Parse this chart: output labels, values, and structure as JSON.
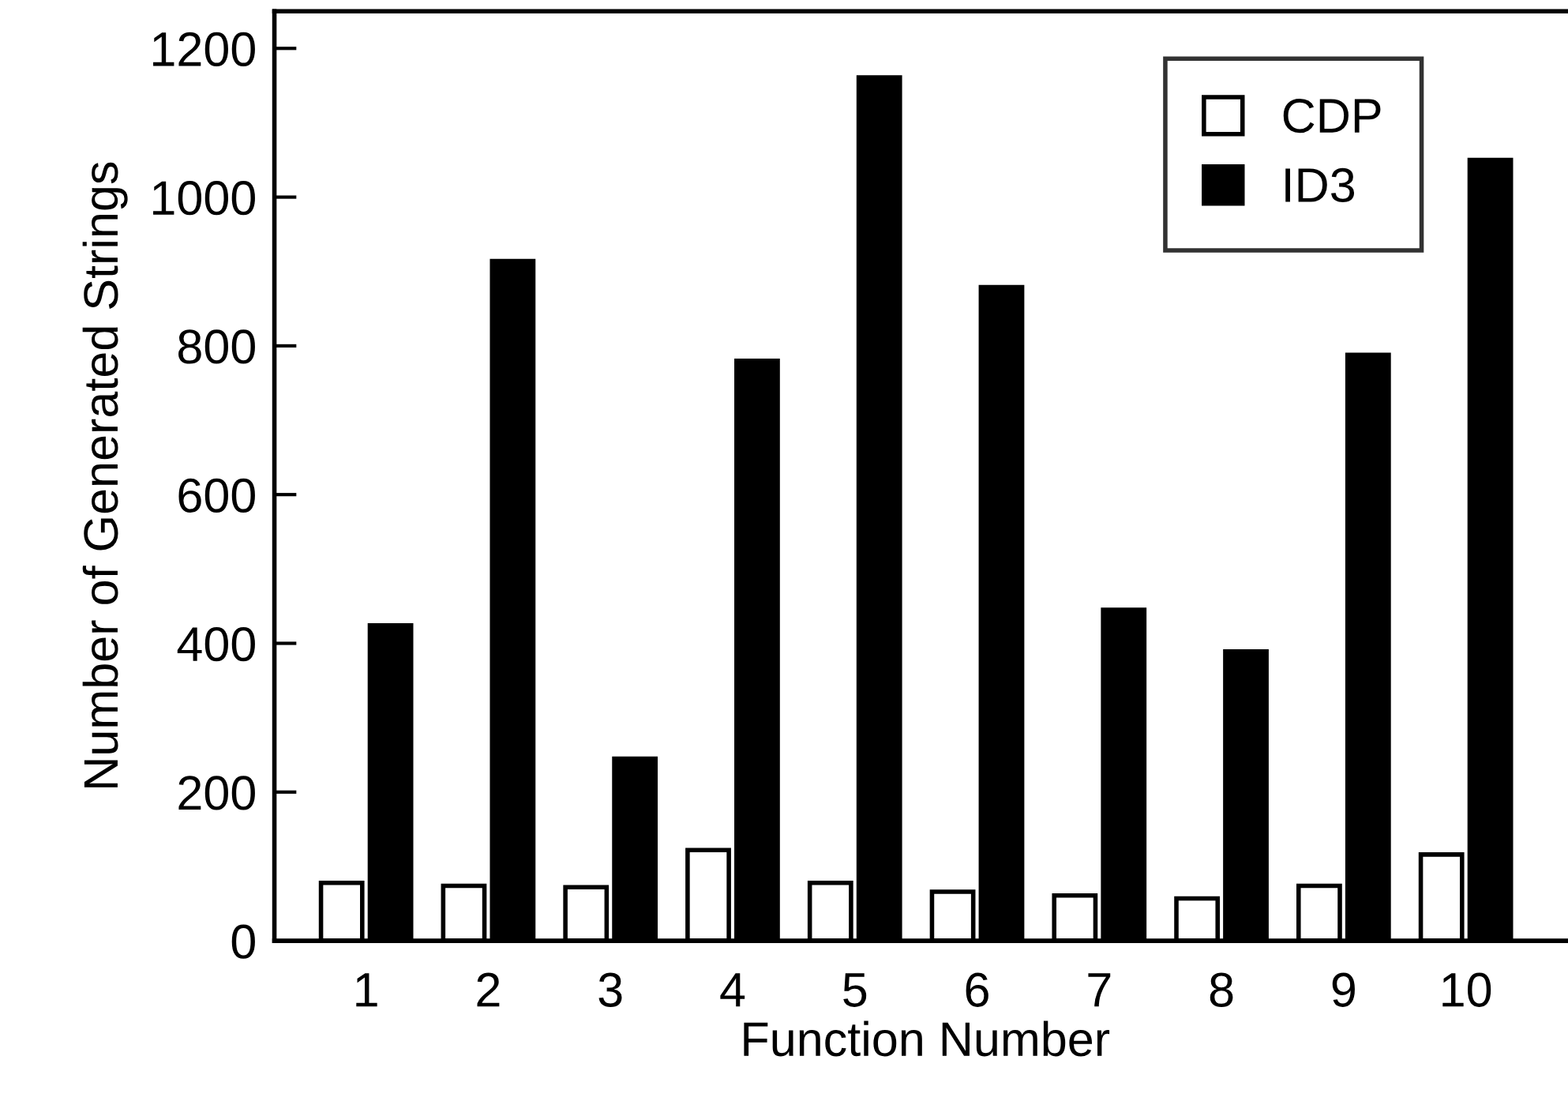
{
  "chart_data": {
    "type": "bar",
    "xlabel": "Function Number",
    "ylabel": "Number of Generated Strings",
    "categories": [
      "1",
      "2",
      "3",
      "4",
      "5",
      "6",
      "7",
      "8",
      "9",
      "10"
    ],
    "series": [
      {
        "name": "CDP",
        "color": "#ffffff",
        "values": [
          78,
          74,
          72,
          122,
          78,
          66,
          61,
          57,
          74,
          116
        ]
      },
      {
        "name": "ID3",
        "color": "#000000",
        "values": [
          424,
          914,
          245,
          780,
          1161,
          879,
          445,
          389,
          788,
          1050
        ]
      }
    ],
    "ylim": [
      0,
      1250
    ],
    "yticks": [
      0,
      200,
      400,
      600,
      800,
      1000,
      1200
    ],
    "grid": false,
    "legend": "top right"
  }
}
